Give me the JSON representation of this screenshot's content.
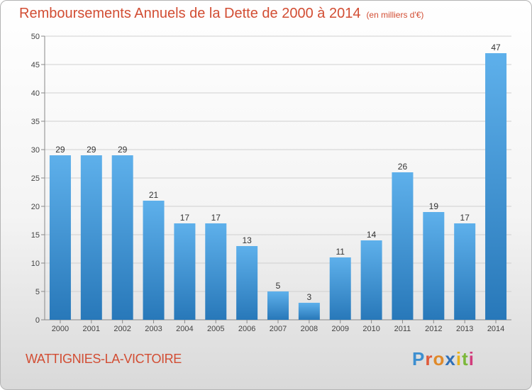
{
  "title": "Remboursements Annuels de la Dette de 2000 à 2014",
  "unit": "(en milliers d'€)",
  "city": "WATTIGNIES-LA-VICTOIRE",
  "logo": {
    "text": "Proxiti",
    "colors": [
      "#3d8fd0",
      "#e05a3a",
      "#e08a2a",
      "#2e6fb8",
      "#e8b21e",
      "#7bb83a",
      "#d23c7c"
    ]
  },
  "colors": {
    "bar_top": "#5eb0eb",
    "bar_bottom": "#2878b9",
    "accent": "#d24d33",
    "grid": "#d0d0d0"
  },
  "chart_data": {
    "type": "bar",
    "title": "Remboursements Annuels de la Dette de 2000 à 2014",
    "xlabel": "",
    "ylabel": "",
    "ylim": [
      0,
      50
    ],
    "yticks": [
      0,
      5,
      10,
      15,
      20,
      25,
      30,
      35,
      40,
      45,
      50
    ],
    "grid": true,
    "categories": [
      "2000",
      "2001",
      "2002",
      "2003",
      "2004",
      "2005",
      "2006",
      "2007",
      "2008",
      "2009",
      "2010",
      "2011",
      "2012",
      "2013",
      "2014"
    ],
    "values": [
      29,
      29,
      29,
      21,
      17,
      17,
      13,
      5,
      3,
      11,
      14,
      26,
      19,
      17,
      47
    ]
  }
}
